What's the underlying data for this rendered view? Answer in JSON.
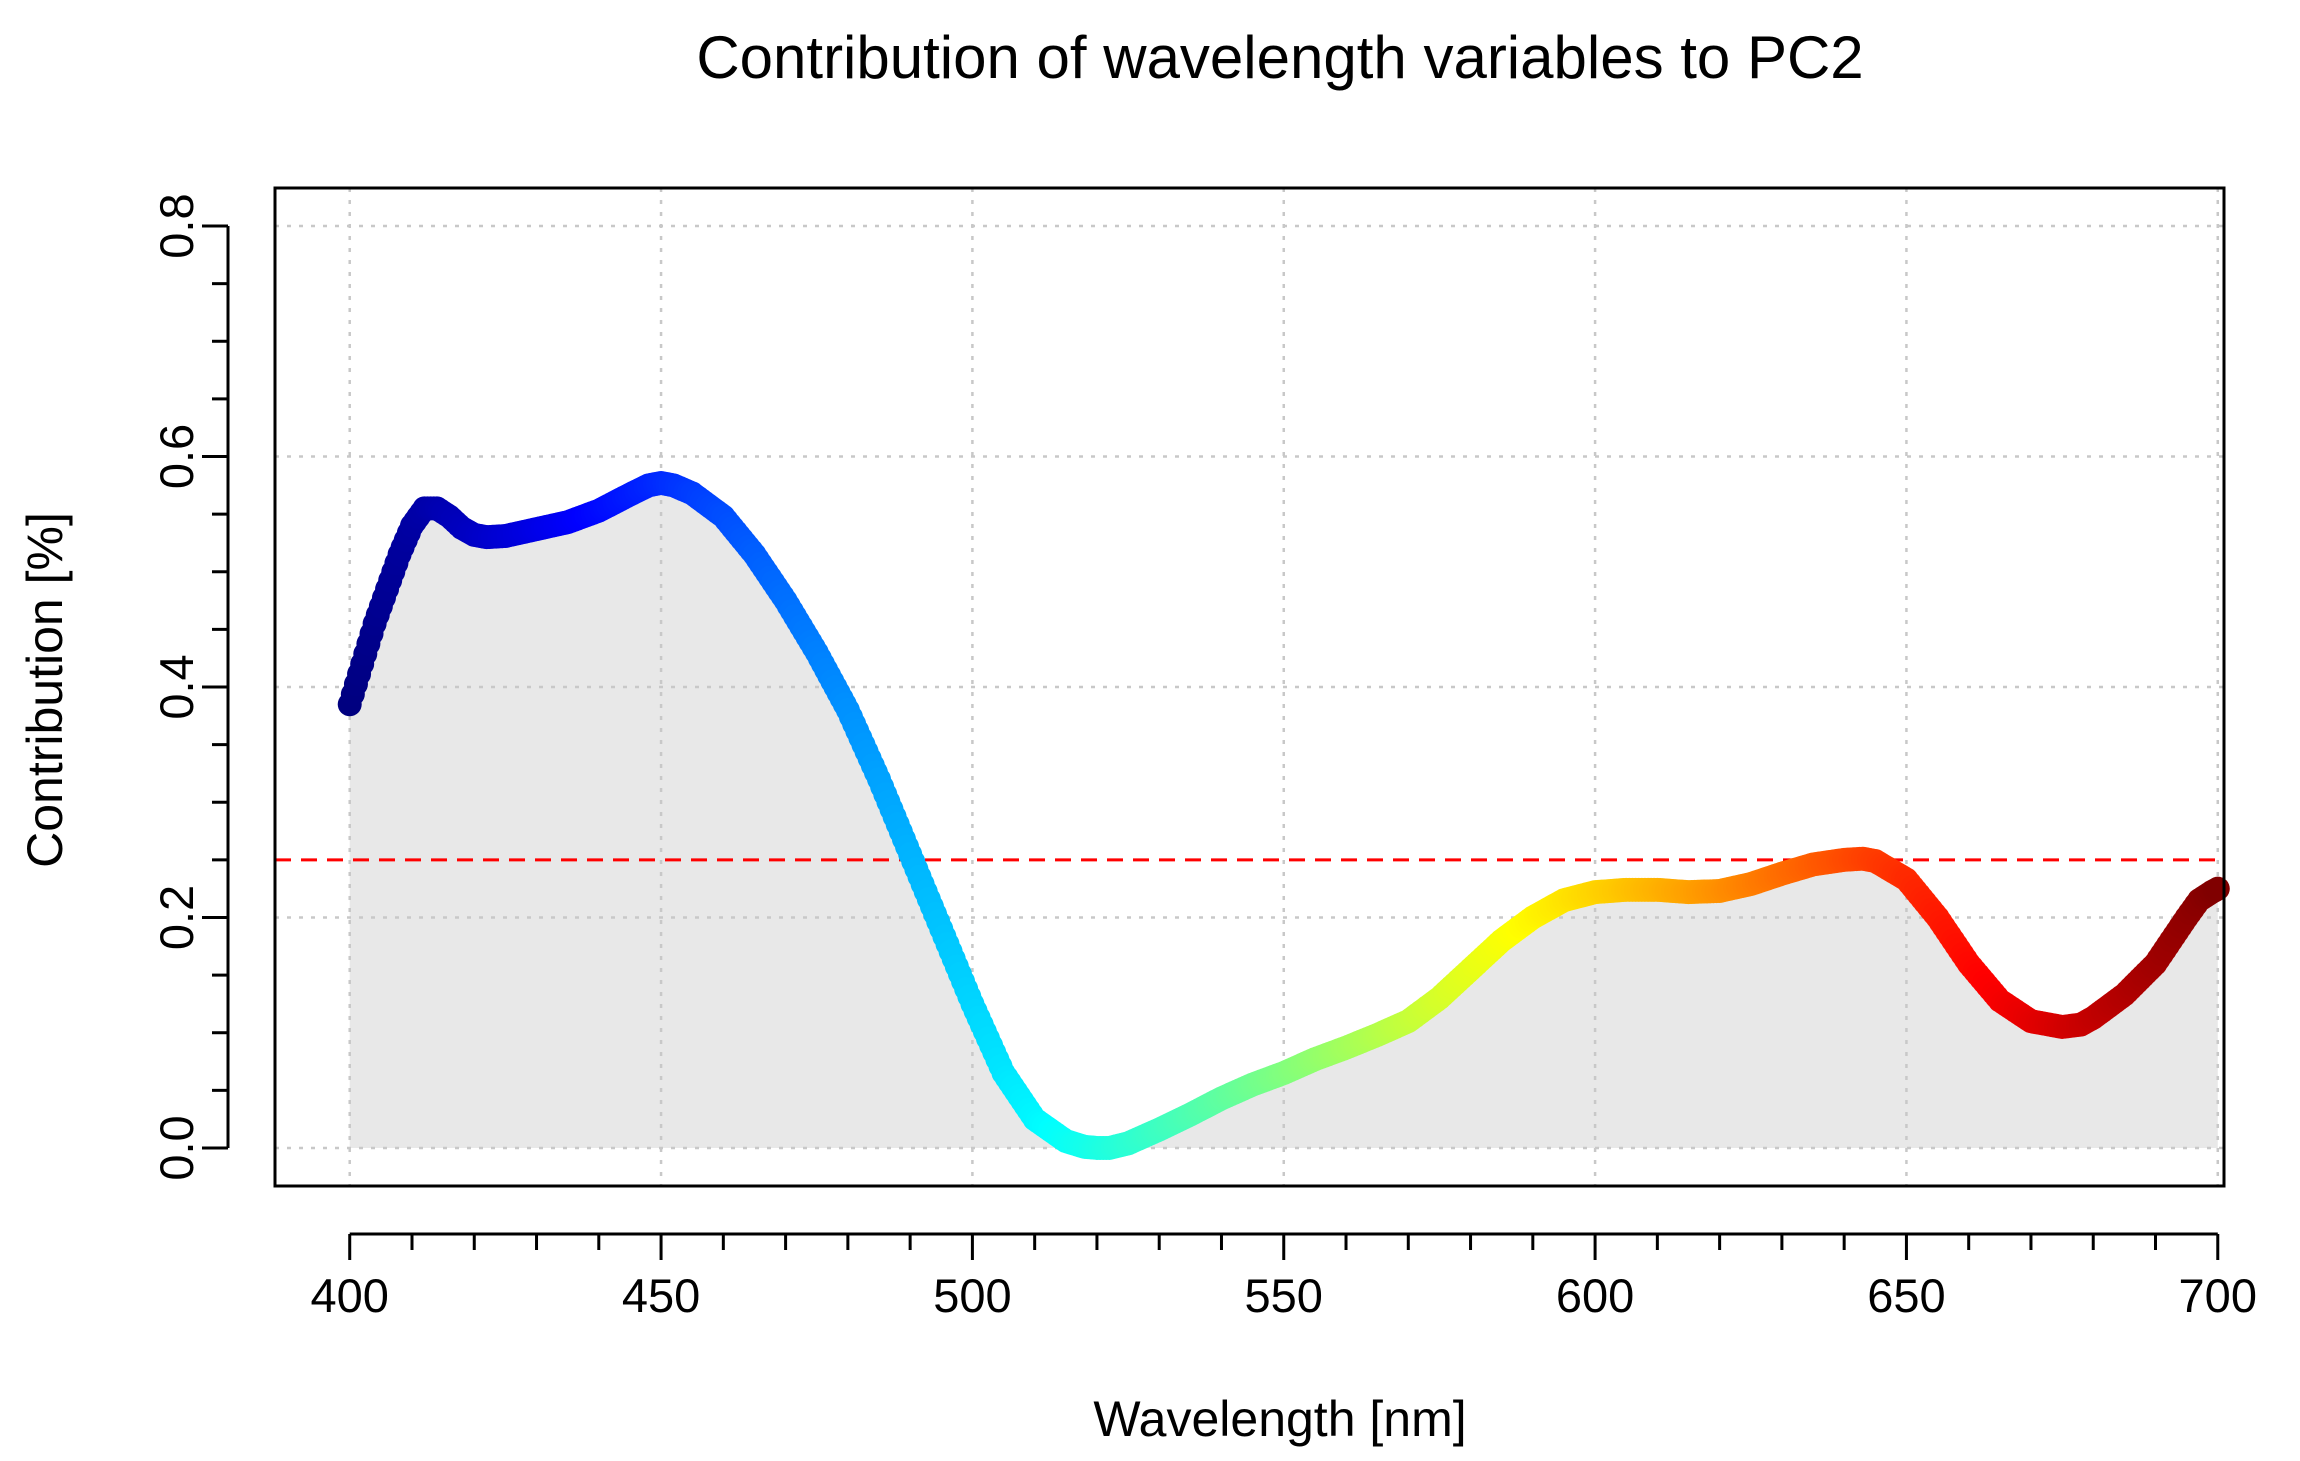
{
  "chart_data": {
    "type": "line",
    "title": "Contribution of wavelength variables to PC2",
    "xlabel": "Wavelength [nm]",
    "ylabel": "Contribution [%]",
    "xlim": [
      388,
      701
    ],
    "ylim": [
      -0.033,
      0.833
    ],
    "x_ticks": [
      400,
      450,
      500,
      550,
      600,
      650,
      700
    ],
    "x_tick_labels": [
      "400",
      "450",
      "500",
      "550",
      "600",
      "650",
      "700"
    ],
    "y_ticks": [
      0.0,
      0.2,
      0.4,
      0.6,
      0.8
    ],
    "y_tick_labels": [
      "0.0",
      "0.2",
      "0.4",
      "0.6",
      "0.8"
    ],
    "grid": true,
    "threshold": 0.25,
    "threshold_color": "#ff0000",
    "area_fill_color": "#e8e8e8",
    "colormap": "jet",
    "series": [
      {
        "x": [
          400,
          402,
          404,
          406,
          408,
          410,
          412,
          414,
          416,
          418,
          420,
          422,
          425,
          430,
          435,
          440,
          445,
          448,
          450,
          452,
          455,
          460,
          465,
          470,
          475,
          480,
          485,
          490,
          495,
          500,
          505,
          510,
          515,
          518,
          520,
          522,
          525,
          530,
          535,
          540,
          545,
          550,
          555,
          560,
          565,
          570,
          575,
          580,
          585,
          590,
          595,
          600,
          605,
          610,
          615,
          620,
          625,
          630,
          635,
          640,
          643,
          645,
          650,
          655,
          660,
          665,
          670,
          675,
          678,
          680,
          685,
          690,
          695,
          697,
          699,
          700
        ],
        "y": [
          0.385,
          0.42,
          0.455,
          0.485,
          0.515,
          0.54,
          0.555,
          0.555,
          0.548,
          0.538,
          0.532,
          0.53,
          0.531,
          0.537,
          0.543,
          0.553,
          0.567,
          0.575,
          0.577,
          0.575,
          0.568,
          0.548,
          0.515,
          0.475,
          0.43,
          0.38,
          0.32,
          0.255,
          0.19,
          0.125,
          0.065,
          0.025,
          0.006,
          0.001,
          0.0,
          0.0,
          0.004,
          0.016,
          0.029,
          0.043,
          0.055,
          0.065,
          0.077,
          0.087,
          0.098,
          0.11,
          0.13,
          0.155,
          0.18,
          0.2,
          0.215,
          0.222,
          0.224,
          0.224,
          0.222,
          0.223,
          0.229,
          0.238,
          0.246,
          0.25,
          0.251,
          0.249,
          0.233,
          0.2,
          0.16,
          0.128,
          0.11,
          0.105,
          0.107,
          0.113,
          0.133,
          0.16,
          0.2,
          0.215,
          0.222,
          0.225
        ]
      }
    ]
  }
}
